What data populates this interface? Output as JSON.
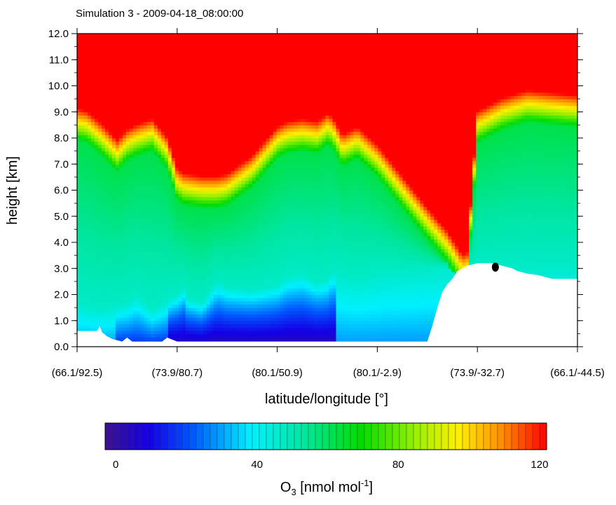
{
  "chart_data": {
    "type": "heatmap",
    "title": "Simulation 3 - 2009-04-18_08:00:00",
    "xlabel": "latitude/longitude [°]",
    "ylabel": "height [km]",
    "ylim": [
      0,
      12
    ],
    "xticks": [
      "(66.1/92.5)",
      "(73.9/80.7)",
      "(80.1/50.9)",
      "(80.1/-2.9)",
      "(73.9/-32.7)",
      "(66.1/-44.5)"
    ],
    "yticks": [
      "0.0",
      "1.0",
      "2.0",
      "3.0",
      "4.0",
      "5.0",
      "6.0",
      "7.0",
      "8.0",
      "9.0",
      "10.0",
      "11.0",
      "12.0"
    ],
    "colorbar": {
      "label_main": "O",
      "label_sub": "3",
      "label_unit": " [nmol mol",
      "label_sup": "-1",
      "label_end": "]",
      "range": [
        -3,
        122
      ],
      "ticks": [
        "0",
        "40",
        "80",
        "120"
      ],
      "tick_values": [
        0,
        40,
        80,
        120
      ]
    },
    "profile_x_fraction": [
      0,
      0.02,
      0.05,
      0.08,
      0.1,
      0.12,
      0.15,
      0.18,
      0.2,
      0.215,
      0.22,
      0.25,
      0.28,
      0.3,
      0.35,
      0.4,
      0.42,
      0.45,
      0.48,
      0.5,
      0.51,
      0.53,
      0.56,
      0.6,
      0.65,
      0.7,
      0.74,
      0.77,
      0.78,
      0.8,
      0.85,
      0.9,
      0.95,
      1.0
    ],
    "tropopause_km": [
      8.6,
      8.5,
      8.0,
      7.4,
      7.8,
      8.0,
      8.2,
      7.5,
      6.3,
      6.1,
      6.1,
      6.0,
      6.0,
      6.1,
      6.8,
      7.9,
      8.1,
      8.2,
      8.1,
      8.4,
      8.3,
      7.6,
      7.9,
      7.2,
      6.0,
      4.8,
      3.9,
      3.0,
      3.1,
      8.5,
      9.0,
      9.3,
      9.2,
      9.1
    ],
    "boundary_layer_km": [
      1.7,
      1.6,
      1.5,
      1.6,
      1.7,
      2.0,
      1.4,
      1.8,
      2.0,
      2.3,
      1.9,
      1.7,
      2.5,
      2.3,
      2.2,
      2.4,
      2.7,
      2.8,
      2.5,
      2.6,
      2.9,
      2.8,
      2.6,
      2.8,
      2.9,
      3.0,
      3.1,
      3.1,
      3.1,
      3.1,
      3.1,
      3.1,
      3.1,
      3.1
    ],
    "terrain_x_fraction": [
      0,
      0.04,
      0.045,
      0.05,
      0.06,
      0.07,
      0.08,
      0.09,
      0.1,
      0.11,
      0.115,
      0.17,
      0.18,
      0.2,
      0.7,
      0.71,
      0.72,
      0.73,
      0.74,
      0.75,
      0.76,
      0.78,
      0.8,
      0.83,
      0.85,
      0.87,
      0.88,
      0.9,
      0.92,
      0.95,
      1.0
    ],
    "terrain_km": [
      0.6,
      0.6,
      0.8,
      0.55,
      0.4,
      0.3,
      0.25,
      0.2,
      0.35,
      0.2,
      0.2,
      0.2,
      0.35,
      0.2,
      0.2,
      0.8,
      1.5,
      2.1,
      2.4,
      2.6,
      2.9,
      3.1,
      3.2,
      3.2,
      3.1,
      3.0,
      2.9,
      2.8,
      2.75,
      2.6,
      2.6
    ],
    "marker": {
      "x_fraction": 0.836,
      "y_km": 3.05
    }
  }
}
